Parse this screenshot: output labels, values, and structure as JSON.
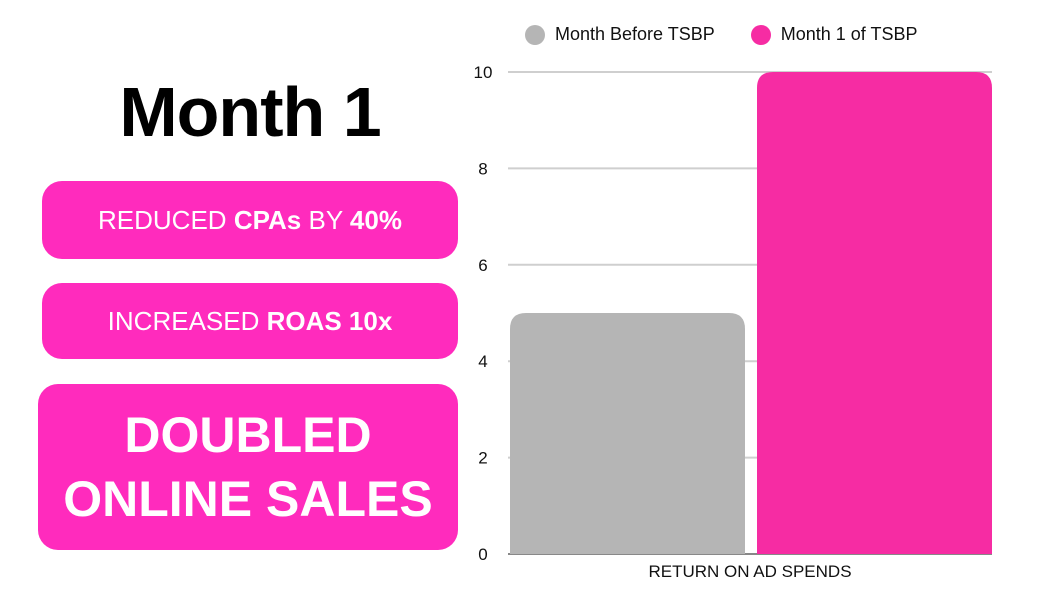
{
  "title": "Month 1",
  "boxes": [
    {
      "pre": "REDUCED ",
      "b1": "CPAs",
      "mid": " BY ",
      "b2": "40%"
    },
    {
      "pre": "INCREASED ",
      "b1": "ROAS 10x"
    },
    {
      "line1": "DOUBLED",
      "line2": "ONLINE SALES"
    }
  ],
  "colors": {
    "accent": "#ff2bbd",
    "before": "#b5b5b5",
    "month1": "#f62ca3"
  },
  "chart_data": {
    "type": "bar",
    "categories": [
      "RETURN ON AD SPENDS"
    ],
    "series": [
      {
        "name": "Month Before TSBP",
        "values": [
          5
        ]
      },
      {
        "name": "Month 1 of TSBP",
        "values": [
          10
        ]
      }
    ],
    "yticks": [
      "0",
      "2",
      "4",
      "6",
      "8",
      "10"
    ],
    "ylim": [
      0,
      10
    ],
    "grid": true,
    "legend": "top"
  }
}
